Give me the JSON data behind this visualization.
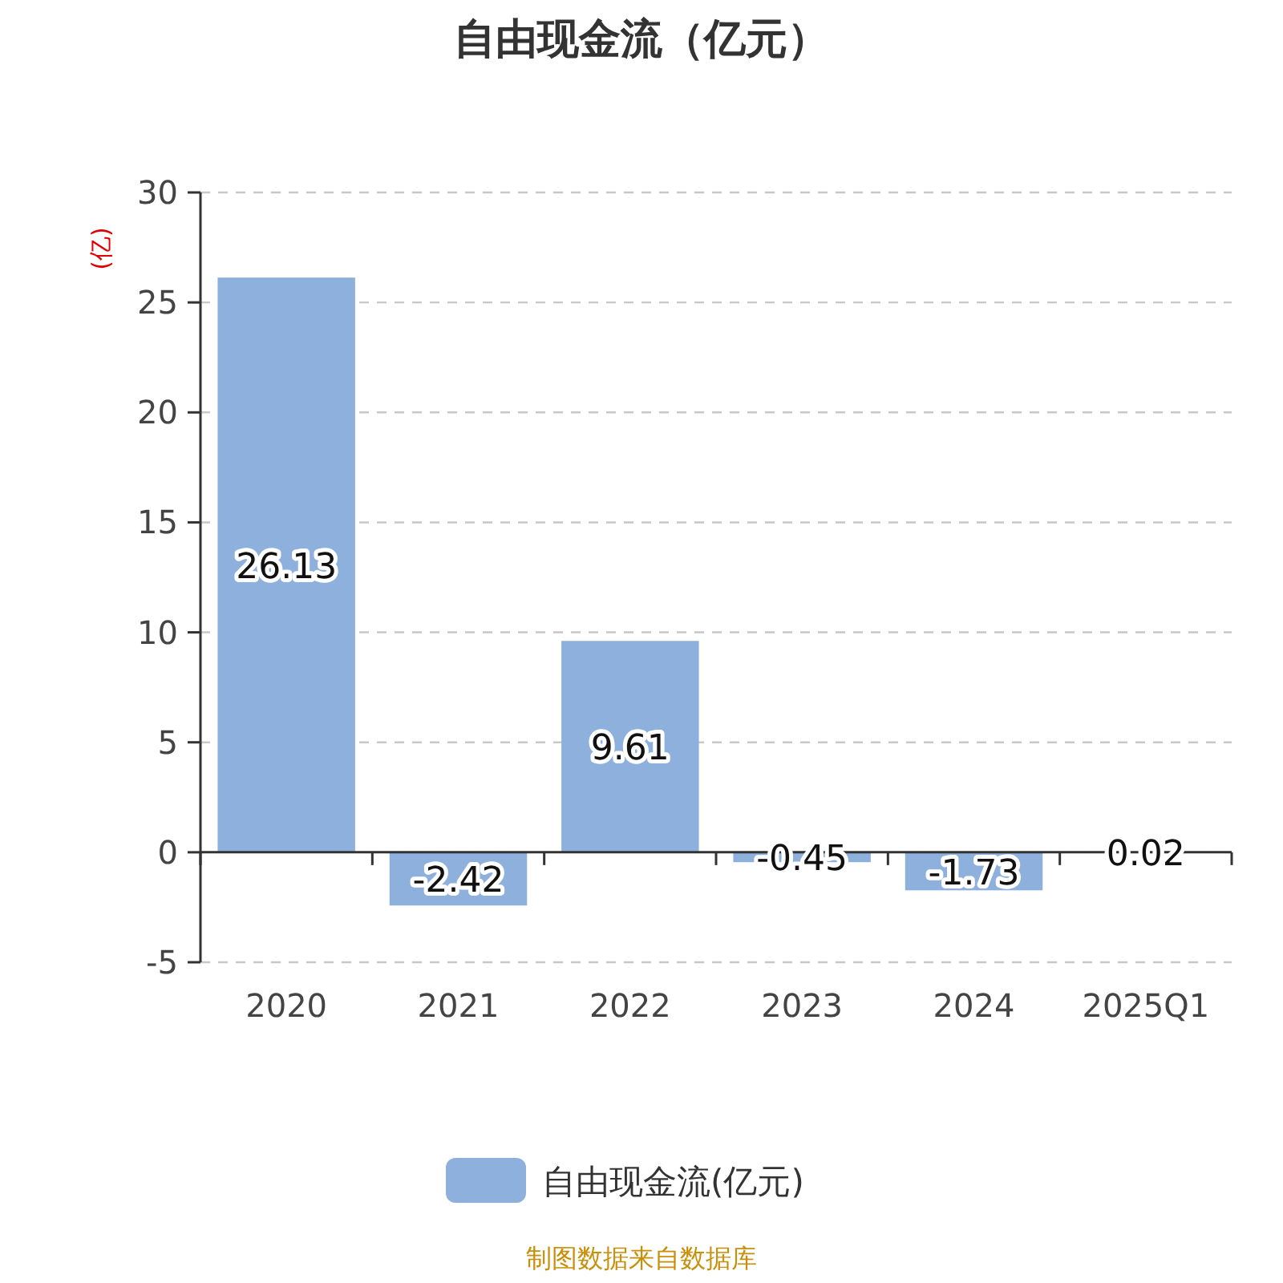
{
  "chart_data": {
    "type": "bar",
    "title": "自由现金流（亿元）",
    "ylabel": "(亿)",
    "categories": [
      "2020",
      "2021",
      "2022",
      "2023",
      "2024",
      "2025Q1"
    ],
    "series": [
      {
        "name": "自由现金流(亿元)",
        "color": "#8eb0dc",
        "values": [
          26.13,
          -2.42,
          9.61,
          -0.45,
          -1.73,
          0.02
        ]
      }
    ],
    "ylim": [
      -5,
      30
    ],
    "yticks": [
      -5,
      0,
      5,
      10,
      15,
      20,
      25,
      30
    ],
    "grid": "y",
    "legend": "bottom",
    "data_labels": true,
    "annotations": [
      "制图数据来自数据库"
    ]
  }
}
